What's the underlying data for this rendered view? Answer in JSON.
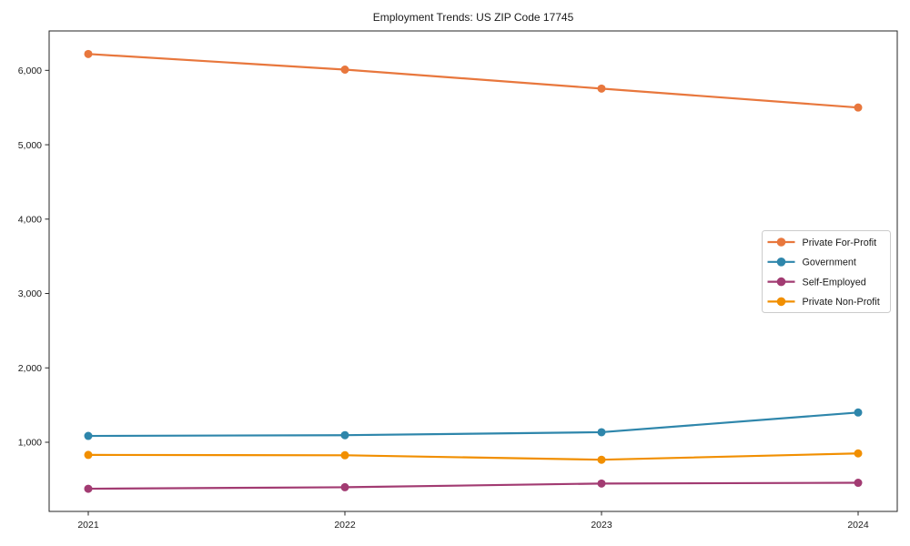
{
  "figure": {
    "background": "#ffffff",
    "axis_color": "#262626",
    "text_color": "#1a1a1a",
    "legend_border_color": "#cccccc",
    "legend_background": "#ffffff"
  },
  "chart_data": {
    "type": "line",
    "title": "Employment Trends: US ZIP Code 17745",
    "xlabel": "",
    "ylabel": "",
    "x_categories": [
      "2021",
      "2022",
      "2023",
      "2024"
    ],
    "series": [
      {
        "name": "Private For-Profit",
        "color": "#e8773d",
        "values": [
          6220,
          6010,
          5755,
          5500
        ]
      },
      {
        "name": "Government",
        "color": "#2e86ab",
        "values": [
          1085,
          1095,
          1135,
          1400
        ]
      },
      {
        "name": "Self-Employed",
        "color": "#a23b72",
        "values": [
          375,
          395,
          445,
          455
        ]
      },
      {
        "name": "Private Non-Profit",
        "color": "#f18f01",
        "values": [
          830,
          825,
          765,
          850
        ]
      }
    ],
    "yticks": [
      {
        "value": 1000,
        "label": "1,000"
      },
      {
        "value": 2000,
        "label": "2,000"
      },
      {
        "value": 3000,
        "label": "3,000"
      },
      {
        "value": 4000,
        "label": "4,000"
      },
      {
        "value": 5000,
        "label": "5,000"
      },
      {
        "value": 6000,
        "label": "6,000"
      }
    ],
    "ylim": [
      70,
      6530
    ],
    "grid": false,
    "legend_position": "center right",
    "marker": "circle"
  }
}
